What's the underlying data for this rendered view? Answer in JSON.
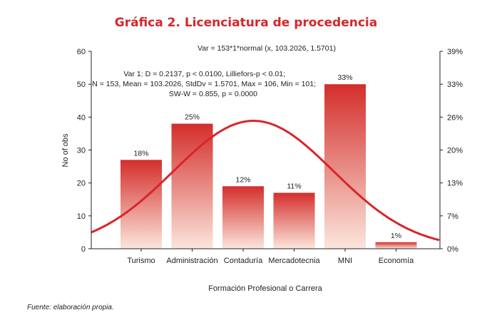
{
  "title": "Gráfica 2. Licenciatura de procedencia",
  "source_note": "Fuente: elaboración propia.",
  "colors": {
    "title": "#d7262a",
    "bar_top": "#d42e2b",
    "bar_bottom": "#fbe6dc",
    "curve": "#d7262a"
  },
  "chart_data": {
    "type": "bar",
    "subtitle": "Var = 153*1*normal (x, 103.2026, 1.5701)",
    "stats_lines": [
      "Var 1: D = 0.2137, p < 0.0100, Lilliefors-p < 0.01;",
      "N = 153, Mean = 103.2026, StdDv = 1.5701, Max = 106, Min = 101;",
      "SW-W = 0.855, p = 0.0000"
    ],
    "xlabel": "Formación Profesional o Carrera",
    "ylabel": "No of obs",
    "categories": [
      "Turismo",
      "Administración",
      "Contaduría",
      "Mercadotecnia",
      "MNI",
      "Economía"
    ],
    "values": [
      27,
      38,
      19,
      17,
      50,
      2
    ],
    "bar_labels": [
      "18%",
      "25%",
      "12%",
      "11%",
      "33%",
      "1%"
    ],
    "ylim": [
      0,
      60
    ],
    "y_ticks": [
      "0",
      "10",
      "20",
      "30",
      "40",
      "50",
      "60"
    ],
    "y2_ticks": [
      "0%",
      "7%",
      "13%",
      "20%",
      "26%",
      "33%",
      "39%"
    ],
    "normal_curve": {
      "mean": 103.2026,
      "stddev": 1.5701,
      "n": 153,
      "x_values": [
        101,
        102,
        103,
        104,
        105,
        106
      ]
    },
    "grid": false
  }
}
